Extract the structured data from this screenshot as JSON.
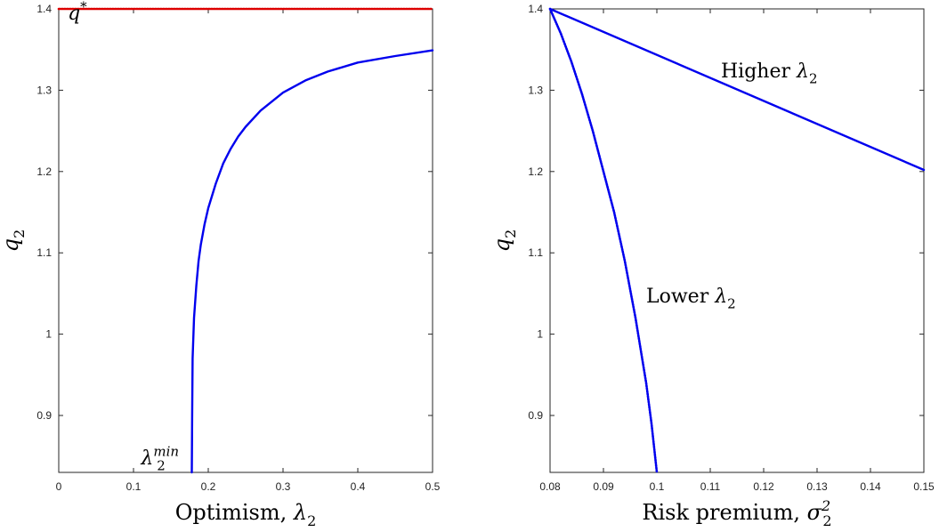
{
  "chart_data": [
    {
      "type": "line",
      "xlabel": {
        "text": "Optimism, ",
        "symbol": "λ",
        "sub": "2"
      },
      "ylabel": {
        "symbol": "q",
        "sub": "2"
      },
      "xlim": [
        0,
        0.5
      ],
      "ylim": [
        0.83,
        1.4
      ],
      "xticks": [
        "0",
        "0.1",
        "0.2",
        "0.3",
        "0.4",
        "0.5"
      ],
      "yticks": [
        "0.9",
        "1",
        "1.1",
        "1.2",
        "1.3",
        "1.4"
      ],
      "grid": false,
      "series": [
        {
          "color": "#0000ee",
          "style": "solid",
          "x": [
            0.178,
            0.1785,
            0.179,
            0.181,
            0.184,
            0.187,
            0.19,
            0.195,
            0.2,
            0.21,
            0.22,
            0.23,
            0.24,
            0.25,
            0.27,
            0.3,
            0.33,
            0.36,
            0.4,
            0.45,
            0.5
          ],
          "y": [
            0.83,
            0.9,
            0.97,
            1.02,
            1.06,
            1.09,
            1.11,
            1.135,
            1.155,
            1.185,
            1.21,
            1.228,
            1.243,
            1.255,
            1.275,
            1.297,
            1.312,
            1.323,
            1.334,
            1.342,
            1.349
          ]
        },
        {
          "color": "#dd0000",
          "style": "dotted",
          "x": [
            0,
            0.5
          ],
          "y": [
            1.4,
            1.4
          ]
        }
      ],
      "annotations": [
        {
          "symbol": "q",
          "sup": "*",
          "x": 0.012,
          "y": 1.387
        },
        {
          "symbol": "λ",
          "sub": "2",
          "sup": "min",
          "x": 0.11,
          "y": 0.84
        }
      ]
    },
    {
      "type": "line",
      "xlabel": {
        "text": "Risk premium, ",
        "symbol": "σ",
        "sub": "2",
        "sup": "2"
      },
      "ylabel": {
        "symbol": "q",
        "sub": "2"
      },
      "xlim": [
        0.08,
        0.15
      ],
      "ylim": [
        0.83,
        1.4
      ],
      "xticks": [
        "0.08",
        "0.09",
        "0.1",
        "0.11",
        "0.12",
        "0.13",
        "0.14",
        "0.15"
      ],
      "yticks": [
        "0.9",
        "1",
        "1.1",
        "1.2",
        "1.3",
        "1.4"
      ],
      "grid": false,
      "series": [
        {
          "color": "#0000ee",
          "style": "solid",
          "x": [
            0.08,
            0.15
          ],
          "y": [
            1.4,
            1.202
          ]
        },
        {
          "color": "#0000ee",
          "style": "dotted",
          "x": [
            0.08,
            0.082,
            0.084,
            0.086,
            0.088,
            0.09,
            0.092,
            0.094,
            0.096,
            0.097,
            0.098,
            0.099,
            0.0995,
            0.1
          ],
          "y": [
            1.4,
            1.37,
            1.335,
            1.295,
            1.25,
            1.2,
            1.15,
            1.09,
            1.02,
            0.98,
            0.94,
            0.89,
            0.86,
            0.83
          ]
        }
      ],
      "annotations": [
        {
          "text": "Higher ",
          "symbol": "λ",
          "sub": "2",
          "x": 0.112,
          "y": 1.316
        },
        {
          "text": "Lower ",
          "symbol": "λ",
          "sub": "2",
          "x": 0.098,
          "y": 1.039
        }
      ]
    }
  ]
}
